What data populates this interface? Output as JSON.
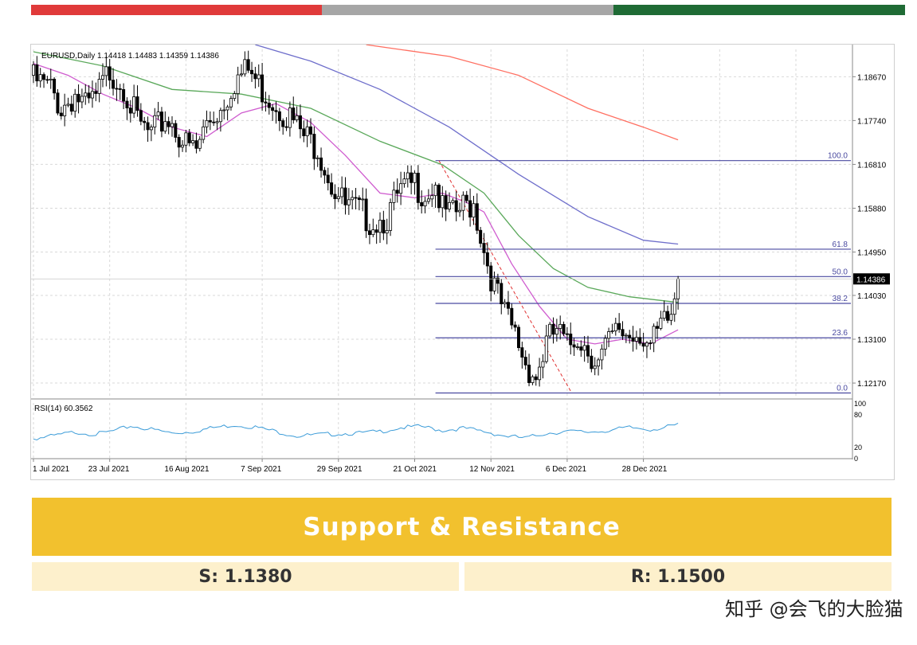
{
  "header_bar": {
    "colors": [
      "#e03a3a",
      "#a6a6a6",
      "#1f6b35"
    ]
  },
  "chart_data": {
    "type": "candlestick",
    "symbol_header": "EURUSD,Daily  1.14418 1.14483 1.14359 1.14386",
    "current_price_label": "1.14386",
    "ylim": [
      1.1185,
      1.1925
    ],
    "y_ticks": [
      {
        "value": 1.1867,
        "label": "1.18670"
      },
      {
        "value": 1.1774,
        "label": "1.17740"
      },
      {
        "value": 1.1681,
        "label": "1.16810"
      },
      {
        "value": 1.1588,
        "label": "1.15880"
      },
      {
        "value": 1.1495,
        "label": "1.14950"
      },
      {
        "value": 1.1403,
        "label": "1.14030"
      },
      {
        "value": 1.131,
        "label": "1.13100"
      },
      {
        "value": 1.1217,
        "label": "1.12170"
      }
    ],
    "x_ticks": [
      "1 Jul 2021",
      "23 Jul 2021",
      "16 Aug 2021",
      "7 Sep 2021",
      "29 Sep 2021",
      "21 Oct 2021",
      "12 Nov 2021",
      "6 Dec 2021",
      "28 Dec 2021"
    ],
    "anchor_closes": [
      [
        0,
        1.186
      ],
      [
        5,
        1.184
      ],
      [
        8,
        1.18
      ],
      [
        12,
        1.183
      ],
      [
        15,
        1.18
      ],
      [
        18,
        1.182
      ],
      [
        22,
        1.188
      ],
      [
        26,
        1.185
      ],
      [
        30,
        1.177
      ],
      [
        34,
        1.174
      ],
      [
        38,
        1.178
      ],
      [
        40,
        1.177
      ],
      [
        44,
        1.172
      ],
      [
        47,
        1.171
      ],
      [
        50,
        1.177
      ],
      [
        54,
        1.18
      ],
      [
        58,
        1.186
      ],
      [
        62,
        1.188
      ],
      [
        66,
        1.184
      ],
      [
        70,
        1.181
      ],
      [
        74,
        1.178
      ],
      [
        78,
        1.174
      ],
      [
        82,
        1.172
      ],
      [
        86,
        1.164
      ],
      [
        90,
        1.159
      ],
      [
        94,
        1.158
      ],
      [
        98,
        1.156
      ],
      [
        102,
        1.157
      ],
      [
        106,
        1.162
      ],
      [
        110,
        1.164
      ],
      [
        113,
        1.162
      ],
      [
        116,
        1.164
      ],
      [
        118,
        1.158
      ],
      [
        121,
        1.157
      ],
      [
        124,
        1.159
      ],
      [
        127,
        1.16
      ],
      [
        130,
        1.15
      ],
      [
        133,
        1.142
      ],
      [
        136,
        1.136
      ],
      [
        139,
        1.132
      ],
      [
        142,
        1.126
      ],
      [
        145,
        1.123
      ],
      [
        148,
        1.13
      ],
      [
        151,
        1.133
      ],
      [
        154,
        1.129
      ],
      [
        157,
        1.132
      ],
      [
        160,
        1.129
      ],
      [
        163,
        1.126
      ],
      [
        166,
        1.13
      ],
      [
        169,
        1.133
      ],
      [
        172,
        1.132
      ],
      [
        175,
        1.133
      ],
      [
        178,
        1.129
      ],
      [
        181,
        1.133
      ],
      [
        184,
        1.136
      ],
      [
        186,
        1.1438
      ]
    ],
    "moving_averages": [
      {
        "color": "#ff6f61",
        "points": [
          [
            96,
            1.1935
          ],
          [
            120,
            1.191
          ],
          [
            140,
            1.187
          ],
          [
            160,
            1.18
          ],
          [
            176,
            1.176
          ],
          [
            186,
            1.1733
          ]
        ]
      },
      {
        "color": "#6e6ecb",
        "points": [
          [
            64,
            1.1935
          ],
          [
            80,
            1.19
          ],
          [
            100,
            1.184
          ],
          [
            120,
            1.176
          ],
          [
            140,
            1.166
          ],
          [
            160,
            1.157
          ],
          [
            176,
            1.152
          ],
          [
            186,
            1.1512
          ]
        ]
      },
      {
        "color": "#5aa85a",
        "points": [
          [
            0,
            1.192
          ],
          [
            20,
            1.189
          ],
          [
            40,
            1.184
          ],
          [
            60,
            1.183
          ],
          [
            80,
            1.18
          ],
          [
            100,
            1.173
          ],
          [
            118,
            1.168
          ],
          [
            130,
            1.162
          ],
          [
            140,
            1.153
          ],
          [
            150,
            1.146
          ],
          [
            160,
            1.142
          ],
          [
            172,
            1.14
          ],
          [
            186,
            1.1388
          ]
        ]
      },
      {
        "color": "#cf5ccf",
        "points": [
          [
            0,
            1.1895
          ],
          [
            10,
            1.187
          ],
          [
            20,
            1.183
          ],
          [
            30,
            1.18
          ],
          [
            40,
            1.176
          ],
          [
            50,
            1.174
          ],
          [
            60,
            1.179
          ],
          [
            70,
            1.181
          ],
          [
            80,
            1.177
          ],
          [
            90,
            1.17
          ],
          [
            100,
            1.162
          ],
          [
            110,
            1.161
          ],
          [
            118,
            1.162
          ],
          [
            125,
            1.16
          ],
          [
            130,
            1.158
          ],
          [
            138,
            1.147
          ],
          [
            146,
            1.138
          ],
          [
            154,
            1.131
          ],
          [
            162,
            1.13
          ],
          [
            170,
            1.131
          ],
          [
            178,
            1.13
          ],
          [
            186,
            1.133
          ]
        ]
      }
    ],
    "fibonacci": {
      "start_index": 116,
      "end_index": 210,
      "levels": [
        {
          "label": "100.0",
          "value": 1.1689
        },
        {
          "label": "61.8",
          "value": 1.1501
        },
        {
          "label": "50.0",
          "value": 1.1443
        },
        {
          "label": "38.2",
          "value": 1.1386
        },
        {
          "label": "23.6",
          "value": 1.1313
        },
        {
          "label": "0.0",
          "value": 1.1196
        }
      ],
      "color": "#4a4aa0"
    },
    "trend_line": {
      "points": [
        [
          117,
          1.1689
        ],
        [
          155,
          1.12
        ]
      ],
      "color": "#e03030"
    },
    "rsi": {
      "label": "RSI(14) 60.3562",
      "ylim": [
        0,
        100
      ],
      "ticks": [
        {
          "value": 100,
          "label": "100"
        },
        {
          "value": 80,
          "label": "80"
        },
        {
          "value": 20,
          "label": "20"
        },
        {
          "value": 0,
          "label": "0"
        }
      ],
      "color": "#3a9bd8",
      "anchor_values": [
        [
          0,
          35
        ],
        [
          6,
          40
        ],
        [
          12,
          47
        ],
        [
          18,
          43
        ],
        [
          24,
          50
        ],
        [
          28,
          58
        ],
        [
          34,
          52
        ],
        [
          40,
          45
        ],
        [
          46,
          48
        ],
        [
          52,
          55
        ],
        [
          58,
          60
        ],
        [
          64,
          56
        ],
        [
          70,
          48
        ],
        [
          76,
          40
        ],
        [
          82,
          42
        ],
        [
          88,
          44
        ],
        [
          94,
          45
        ],
        [
          100,
          48
        ],
        [
          106,
          55
        ],
        [
          112,
          57
        ],
        [
          118,
          50
        ],
        [
          124,
          54
        ],
        [
          130,
          48
        ],
        [
          136,
          40
        ],
        [
          142,
          36
        ],
        [
          148,
          45
        ],
        [
          154,
          48
        ],
        [
          160,
          47
        ],
        [
          166,
          50
        ],
        [
          172,
          55
        ],
        [
          178,
          52
        ],
        [
          182,
          55
        ],
        [
          186,
          60
        ]
      ]
    }
  },
  "section": {
    "title": "Support & Resistance",
    "support": "S: 1.1380",
    "resistance": "R: 1.1500"
  },
  "watermark": "知乎 @会飞的大脸猫"
}
